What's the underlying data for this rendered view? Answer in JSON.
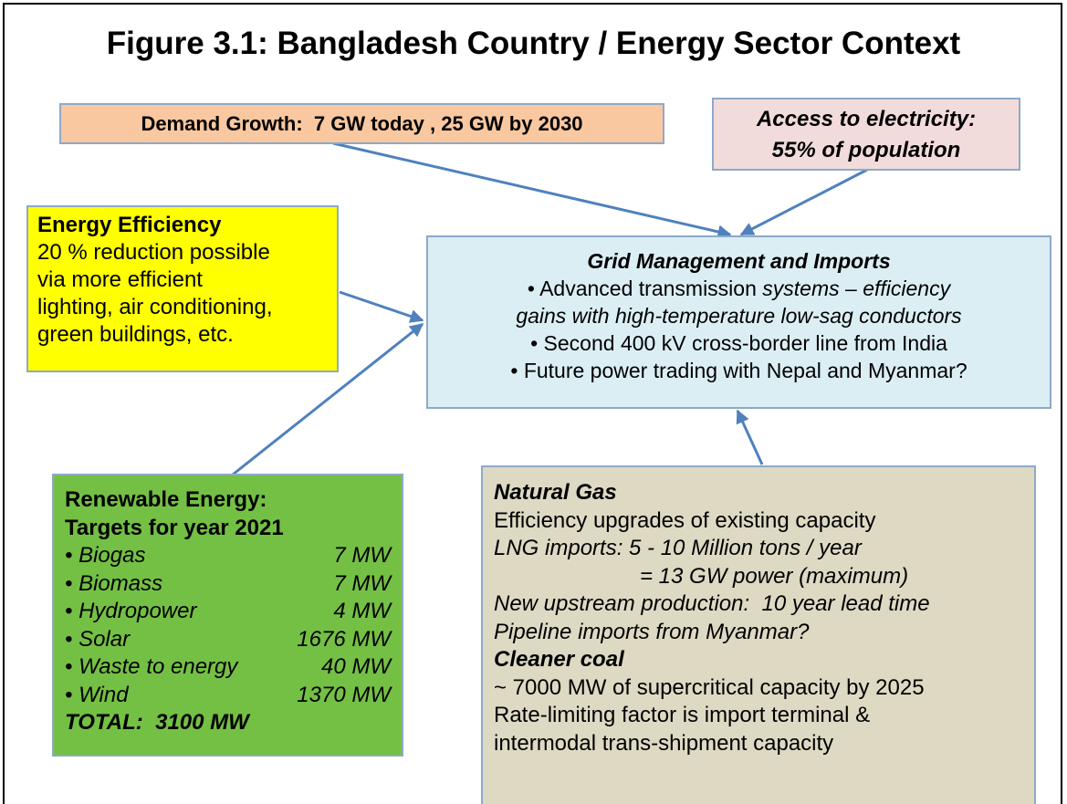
{
  "title": "Figure 3.1: Bangladesh Country / Energy Sector Context",
  "demand": "Demand Growth:  7 GW today , 25 GW by 2030",
  "access": [
    "Access to electricity:",
    "55% of population"
  ],
  "efficiency": {
    "heading": "Energy Efficiency",
    "lines": [
      "20 % reduction possible",
      "via more efficient",
      "lighting, air conditioning,",
      "green buildings, etc."
    ]
  },
  "grid": {
    "heading": "Grid Management and Imports",
    "lines": [
      [
        "• Advanced transmission ",
        "systems – efficiency"
      ],
      "gains with high-temperature low-sag conductors",
      "• Second 400 kV cross-border line from India",
      "• Future power trading with Nepal and Myanmar?"
    ]
  },
  "renewable": {
    "heading": [
      "Renewable Energy:",
      "Targets for year 2021"
    ],
    "items": [
      {
        "name": "• Biogas",
        "value": "7 MW"
      },
      {
        "name": "• Biomass",
        "value": "7 MW"
      },
      {
        "name": "• Hydropower",
        "value": "4 MW"
      },
      {
        "name": "• Solar",
        "value": "1676 MW"
      },
      {
        "name": "• Waste to energy",
        "value": "40 MW"
      },
      {
        "name": "• Wind",
        "value": "1370 MW"
      }
    ],
    "total": "TOTAL:  3100 MW"
  },
  "gas": {
    "heading": "Natural Gas",
    "lines": [
      "Efficiency upgrades of existing capacity",
      "LNG imports: 5 - 10 Million tons / year",
      "= 13 GW power (maximum)",
      "New upstream production:  10 year lead time",
      "Pipeline imports from Myanmar?"
    ]
  },
  "coal": {
    "heading": "Cleaner coal",
    "lines": [
      "~ 7000 MW of supercritical capacity by 2025",
      "Rate-limiting factor is import terminal &",
      "intermodal trans-shipment capacity"
    ]
  }
}
